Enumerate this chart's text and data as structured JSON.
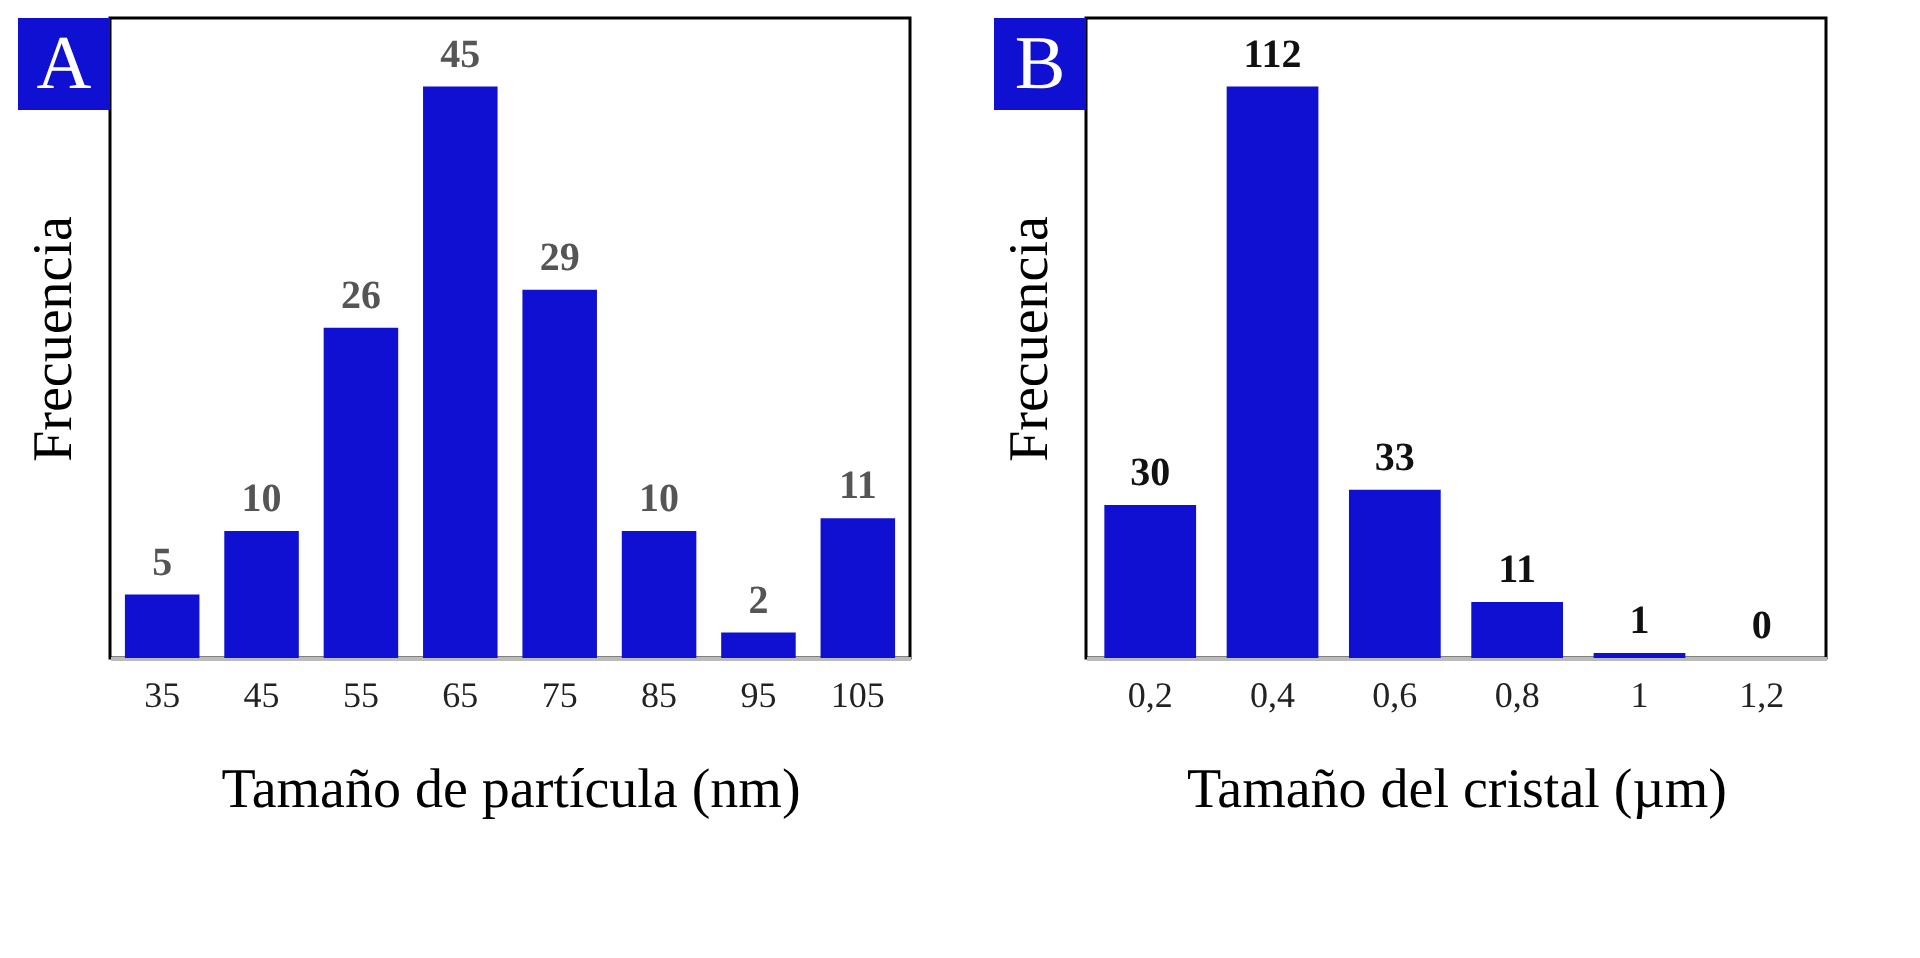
{
  "chart_data": [
    {
      "type": "bar",
      "categories": [
        "35",
        "45",
        "55",
        "65",
        "75",
        "85",
        "95",
        "105"
      ],
      "values": [
        5,
        10,
        26,
        45,
        29,
        10,
        2,
        11
      ],
      "color": "#1010d2",
      "data_labels": true,
      "tick_labels": "x",
      "xlabel": "Tamaño de partícula (nm)",
      "ylabel": "Frecuencia",
      "annotations": [
        "A"
      ]
    },
    {
      "type": "bar",
      "categories": [
        "0,2",
        "0,4",
        "0,6",
        "0,8",
        "1",
        "1,2"
      ],
      "values": [
        30,
        112,
        33,
        11,
        1,
        0
      ],
      "color": "#1010d2",
      "data_labels": true,
      "tick_labels": "x",
      "xlabel": "Tamaño del cristal (µm)",
      "ylabel": "Frecuencia",
      "annotations": [
        "B"
      ]
    }
  ]
}
